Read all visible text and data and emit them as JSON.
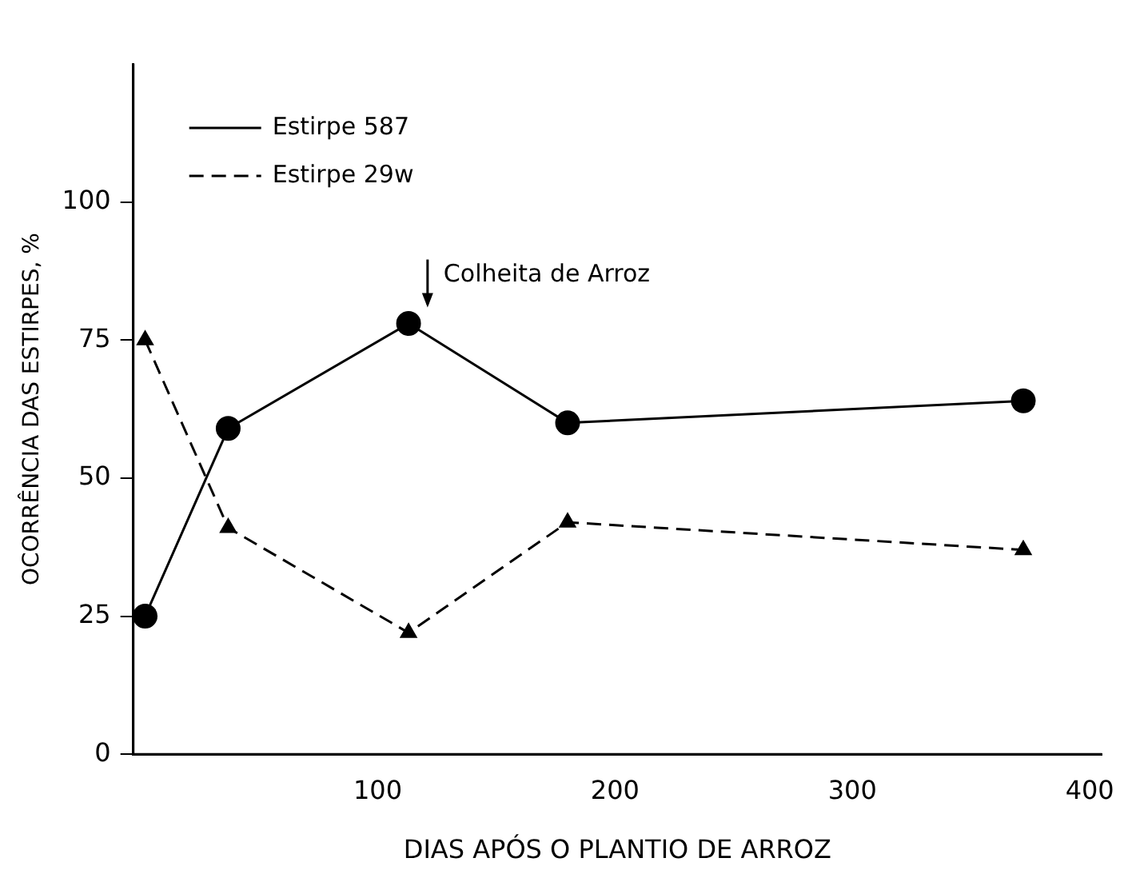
{
  "chart_data": {
    "type": "line",
    "xlabel": "DIAS APÓS O PLANTIO DE ARROZ",
    "ylabel": "OCORRÊNCIA DAS ESTIRPES, %",
    "x": [
      2,
      37,
      113,
      180,
      372
    ],
    "series": [
      {
        "name": "Estirpe 587",
        "color": "#000000",
        "values": [
          25,
          59,
          78,
          60,
          64
        ],
        "marker": "circle",
        "line_style": "solid"
      },
      {
        "name": "Estirpe 29w",
        "color": "#000000",
        "values": [
          75,
          41,
          22,
          42,
          37
        ],
        "marker": "triangle",
        "line_style": "dashed"
      }
    ],
    "xlim": [
      -3,
      405
    ],
    "xticks": [
      100,
      200,
      300,
      400
    ],
    "ylim": [
      0,
      125
    ],
    "yticks": [
      0,
      25,
      50,
      75,
      100
    ],
    "annotations": [
      {
        "text": "Colheita de Arroz",
        "x": 121,
        "y": 78
      }
    ],
    "legend": "top left",
    "grid": false
  }
}
